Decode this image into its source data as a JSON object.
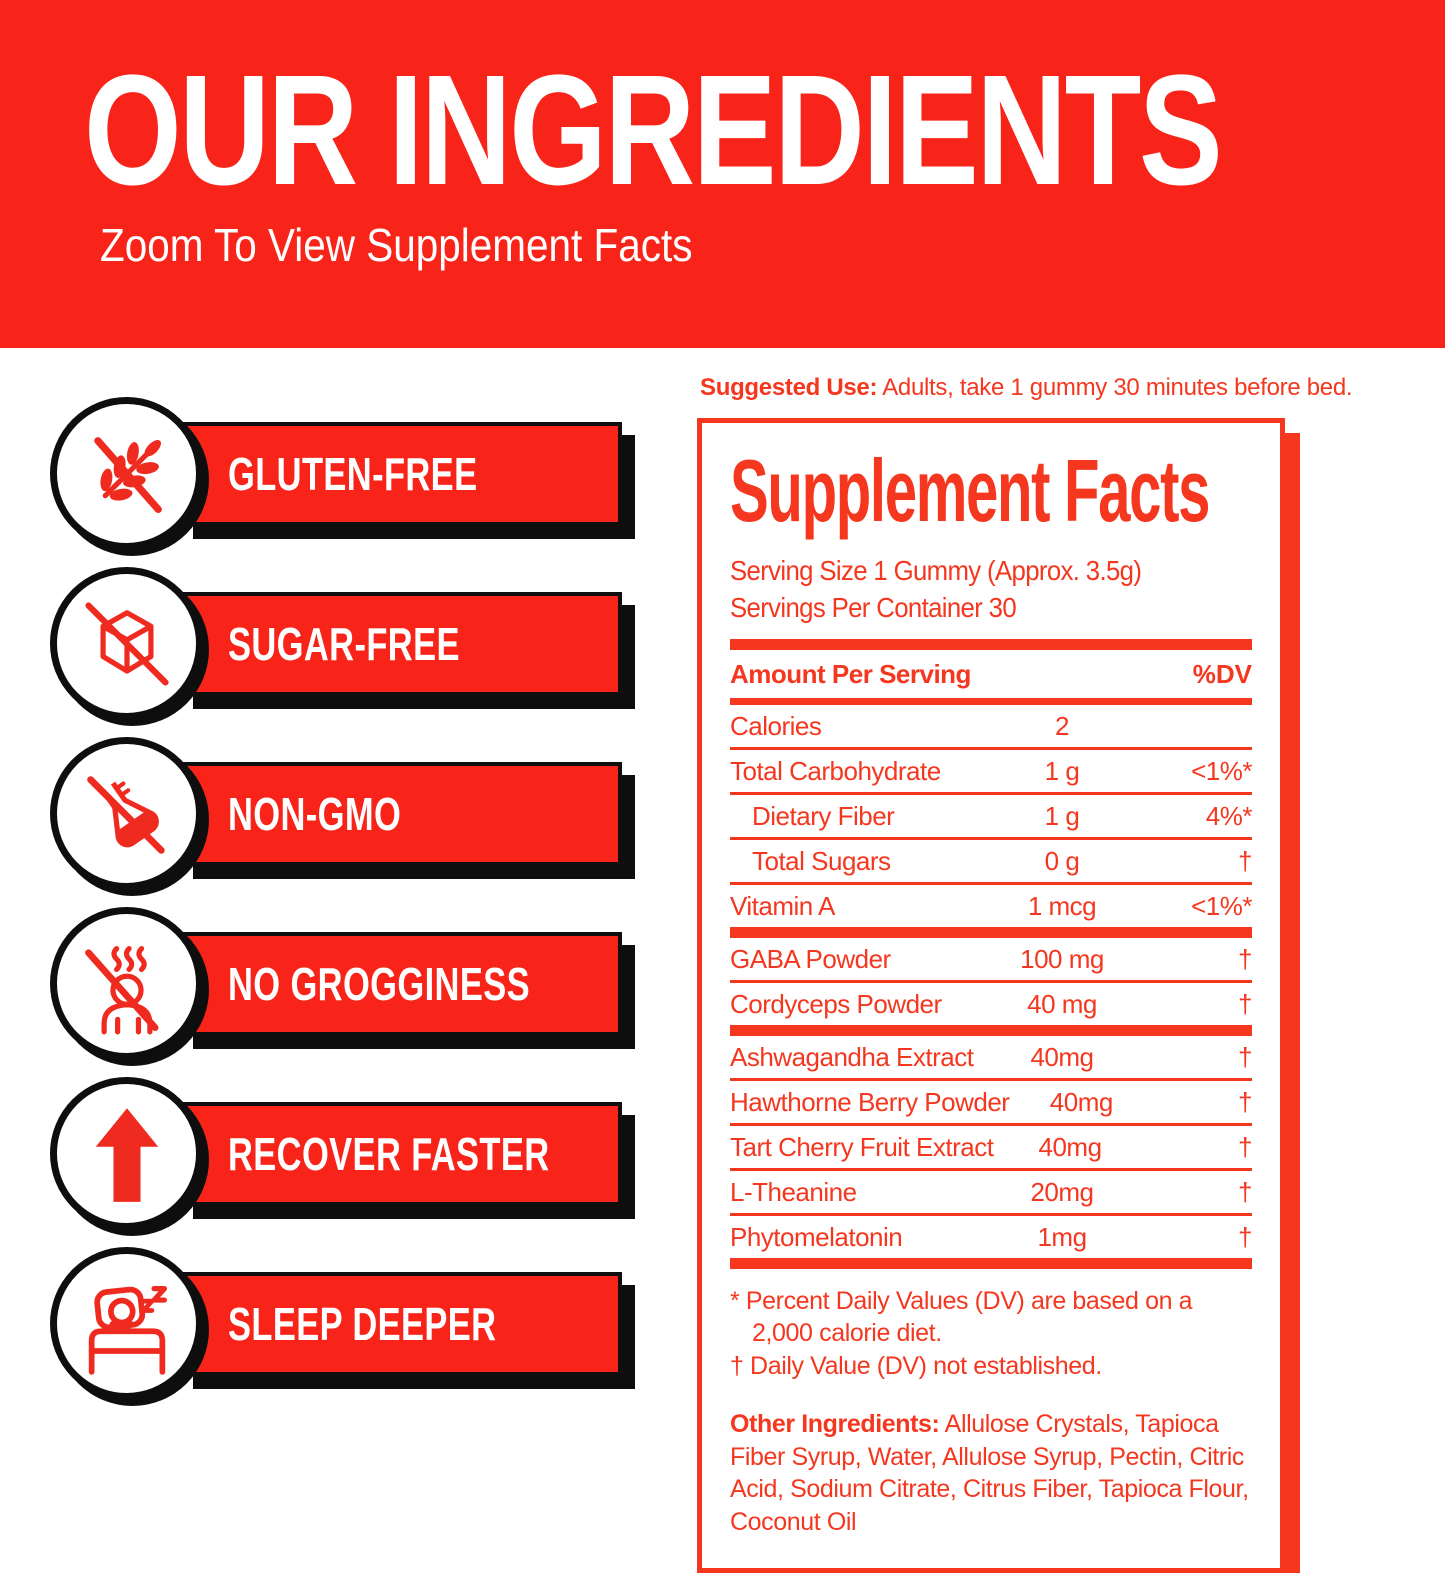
{
  "banner": {
    "title": "OUR INGREDIENTS",
    "subtitle": "Zoom To View Supplement Facts",
    "background_color": "#F8241A",
    "text_color": "#FFFFFF"
  },
  "badges": [
    {
      "label": "GLUTEN-FREE",
      "icon": "wheat-slash-icon"
    },
    {
      "label": "SUGAR-FREE",
      "icon": "sugar-cube-slash-icon"
    },
    {
      "label": "NON-GMO",
      "icon": "flask-slash-icon"
    },
    {
      "label": "NO GROGGINESS",
      "icon": "groggy-person-slash-icon"
    },
    {
      "label": "RECOVER FASTER",
      "icon": "arrow-up-icon"
    },
    {
      "label": "SLEEP DEEPER",
      "icon": "sleeping-person-icon"
    }
  ],
  "suggested_use": {
    "label": "Suggested Use:",
    "text": " Adults, take 1 gummy 30 minutes before bed."
  },
  "panel": {
    "title": "Supplement Facts",
    "serving_size": "Serving Size 1 Gummy (Approx. 3.5g)",
    "servings_per_container": "Servings Per Container 30",
    "header": {
      "amount": "Amount Per Serving",
      "dv": "%DV"
    },
    "rows": [
      {
        "name": "Calories",
        "amount": "2",
        "dv": "",
        "indent": false,
        "sep": "thin"
      },
      {
        "name": "Total Carbohydrate",
        "amount": "1 g",
        "dv": "<1%*",
        "indent": false,
        "sep": "thin"
      },
      {
        "name": "Dietary Fiber",
        "amount": "1 g",
        "dv": "4%*",
        "indent": true,
        "sep": "thin"
      },
      {
        "name": "Total Sugars",
        "amount": "0 g",
        "dv": "†",
        "indent": true,
        "sep": "thin"
      },
      {
        "name": "Vitamin A",
        "amount": "1 mcg",
        "dv": "<1%*",
        "indent": false,
        "sep": "thick"
      },
      {
        "name": "GABA Powder",
        "amount": "100  mg",
        "dv": "†",
        "indent": false,
        "sep": "thin"
      },
      {
        "name": "Cordyceps Powder",
        "amount": "40 mg",
        "dv": "†",
        "indent": false,
        "sep": "thick"
      },
      {
        "name": "Ashwagandha Extract",
        "amount": "40mg",
        "dv": "†",
        "indent": false,
        "sep": "thin"
      },
      {
        "name": "Hawthorne Berry Powder",
        "amount": "40mg",
        "dv": "†",
        "indent": false,
        "sep": "thin"
      },
      {
        "name": "Tart Cherry Fruit Extract",
        "amount": "40mg",
        "dv": "†",
        "indent": false,
        "sep": "thin"
      },
      {
        "name": "L-Theanine",
        "amount": "20mg",
        "dv": "†",
        "indent": false,
        "sep": "thin"
      },
      {
        "name": "Phytomelatonin",
        "amount": "1mg",
        "dv": "†",
        "indent": false,
        "sep": "thick"
      }
    ],
    "footnotes": [
      "* Percent Daily Values (DV) are based on a",
      "2,000 calorie diet.",
      "† Daily Value (DV) not established."
    ],
    "other_ingredients_label": "Other Ingredients:",
    "other_ingredients": " Allulose Crystals, Tapioca Fiber Syrup, Water, Allulose Syrup, Pectin, Citric Acid, Sodium Citrate, Citrus Fiber, Tapioca Flour, Coconut Oil",
    "accent_color": "#F4371E"
  },
  "colors": {
    "banner_red": "#F8241A",
    "panel_red": "#F4371E",
    "outline_black": "#0E0E0E",
    "background": "#FFFFFF"
  }
}
